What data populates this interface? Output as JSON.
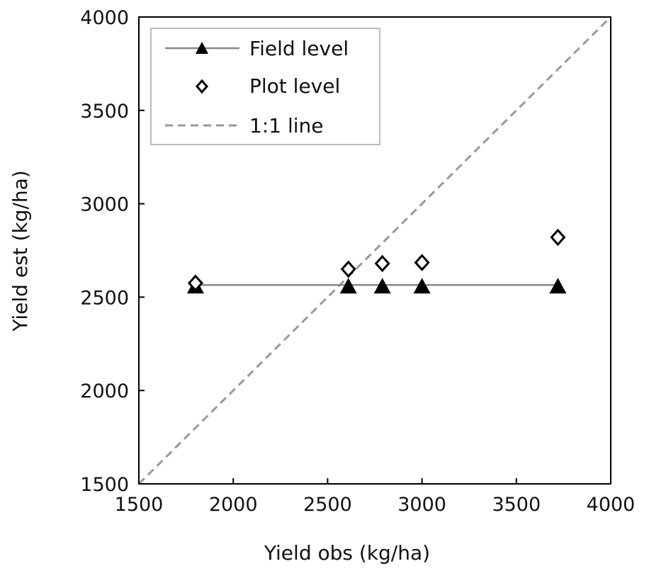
{
  "chart_data": {
    "type": "scatter",
    "xlabel": "Yield obs (kg/ha)",
    "ylabel": "Yield est (kg/ha)",
    "xlim": [
      1500,
      4000
    ],
    "ylim": [
      1500,
      4000
    ],
    "xticks": [
      "1500",
      "2000",
      "2500",
      "3000",
      "3500",
      "4000"
    ],
    "yticks": [
      "1500",
      "2000",
      "2500",
      "3000",
      "3500",
      "4000"
    ],
    "grid": false,
    "legend_position": "top-left",
    "series": [
      {
        "name": "Field level",
        "marker": "filled-triangle",
        "connected": true,
        "color": "#000000",
        "line_color": "#888888",
        "x": [
          1800,
          2610,
          2790,
          3000,
          3720
        ],
        "y": [
          2565,
          2565,
          2565,
          2565,
          2565
        ]
      },
      {
        "name": "Plot level",
        "marker": "open-diamond",
        "connected": false,
        "color": "#000000",
        "x": [
          1800,
          2610,
          2790,
          3000,
          3720
        ],
        "y": [
          2575,
          2650,
          2680,
          2685,
          2820
        ]
      },
      {
        "name": "1:1 line",
        "style": "dashed",
        "color": "#999999",
        "x": [
          1500,
          4000
        ],
        "y": [
          1500,
          4000
        ]
      }
    ]
  }
}
